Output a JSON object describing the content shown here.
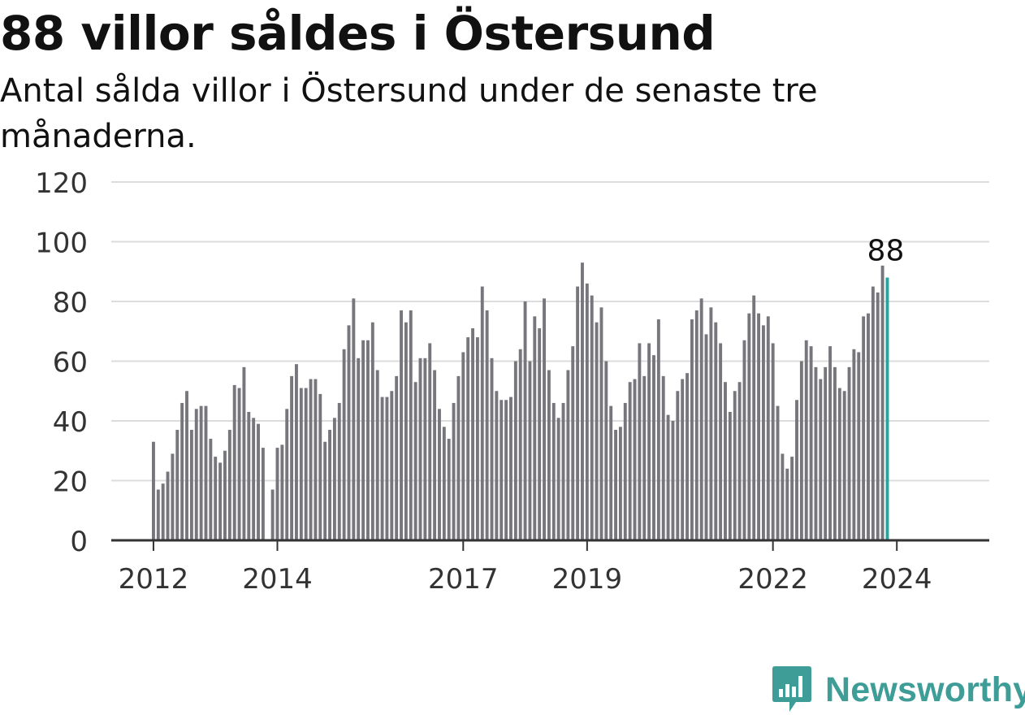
{
  "title": "88 villor såldes i Östersund",
  "subtitle": "Antal sålda villor i Östersund under de senaste tre månaderna.",
  "brand": {
    "name": "Newsworthy",
    "icon": "newsworthy-logo-icon",
    "color": "#3f9d98"
  },
  "chart_data": {
    "type": "bar",
    "title": "88 villor såldes i Östersund",
    "subtitle": "Antal sålda villor i Östersund under de senaste tre månaderna.",
    "ylim": [
      0,
      120
    ],
    "y_ticks": [
      0,
      20,
      40,
      60,
      80,
      100,
      120
    ],
    "x_ticks": [
      {
        "label": "2012",
        "index": 0
      },
      {
        "label": "2014",
        "index": 26
      },
      {
        "label": "2017",
        "index": 65
      },
      {
        "label": "2019",
        "index": 91
      },
      {
        "label": "2022",
        "index": 130
      },
      {
        "label": "2024",
        "index": 156
      }
    ],
    "grid": true,
    "bar_color": "#77767c",
    "highlight_color": "#1fa7a0",
    "highlight_label": "88",
    "values": [
      33,
      17,
      19,
      23,
      29,
      37,
      46,
      50,
      37,
      44,
      45,
      45,
      34,
      28,
      26,
      30,
      37,
      52,
      51,
      58,
      43,
      41,
      39,
      31,
      null,
      17,
      31,
      32,
      44,
      55,
      59,
      51,
      51,
      54,
      54,
      49,
      33,
      37,
      41,
      46,
      64,
      72,
      81,
      61,
      67,
      67,
      73,
      57,
      48,
      48,
      50,
      55,
      77,
      73,
      77,
      53,
      61,
      61,
      66,
      57,
      44,
      38,
      34,
      46,
      55,
      63,
      68,
      71,
      68,
      85,
      77,
      61,
      50,
      47,
      47,
      48,
      60,
      64,
      80,
      60,
      75,
      71,
      81,
      57,
      46,
      41,
      46,
      57,
      65,
      85,
      93,
      86,
      82,
      73,
      78,
      60,
      45,
      37,
      38,
      46,
      53,
      54,
      66,
      55,
      66,
      62,
      74,
      55,
      42,
      40,
      50,
      54,
      56,
      74,
      77,
      81,
      69,
      78,
      73,
      66,
      53,
      43,
      50,
      53,
      67,
      76,
      82,
      76,
      72,
      75,
      66,
      45,
      29,
      24,
      28,
      47,
      60,
      67,
      65,
      58,
      54,
      58,
      65,
      58,
      51,
      50,
      58,
      64,
      63,
      75,
      76,
      85,
      83,
      92,
      88
    ]
  }
}
